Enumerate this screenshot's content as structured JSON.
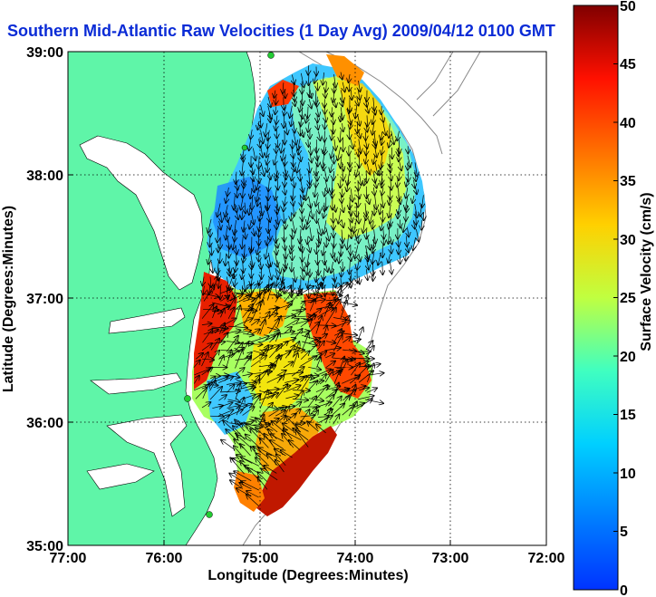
{
  "title": "Southern Mid-Atlantic Raw Velocities (1 Day Avg) 2009/04/12 0100 GMT",
  "xlabel": "Longitude (Degrees:Minutes)",
  "ylabel": "Latitude (Degrees:Minutes)",
  "xticks": [
    "77:00",
    "76:00",
    "75:00",
    "74:00",
    "73:00",
    "72:00"
  ],
  "yticks": [
    "39:00",
    "38:00",
    "37:00",
    "36:00",
    "35:00"
  ],
  "colorbar": {
    "label": "Surface Velocity (cm/s)",
    "ticks": [
      "0",
      "5",
      "10",
      "15",
      "20",
      "25",
      "30",
      "35",
      "40",
      "45",
      "50"
    ],
    "min": 0,
    "max": 50
  },
  "colors": {
    "land": "#5ff5a8",
    "title": "#0a2bd6",
    "arrows": "#000000",
    "station": "#22cc33"
  },
  "chart_data": {
    "type": "heatmap",
    "title": "Southern Mid-Atlantic Raw Velocities (1 Day Avg) 2009/04/12 0100 GMT",
    "xlabel": "Longitude (Degrees:Minutes)",
    "ylabel": "Latitude (Degrees:Minutes)",
    "xlim": [
      -77,
      -72
    ],
    "ylim": [
      35,
      39
    ],
    "grid": true,
    "colorbar_range": [
      0,
      50
    ],
    "colorbar_label": "Surface Velocity (cm/s)"
  }
}
